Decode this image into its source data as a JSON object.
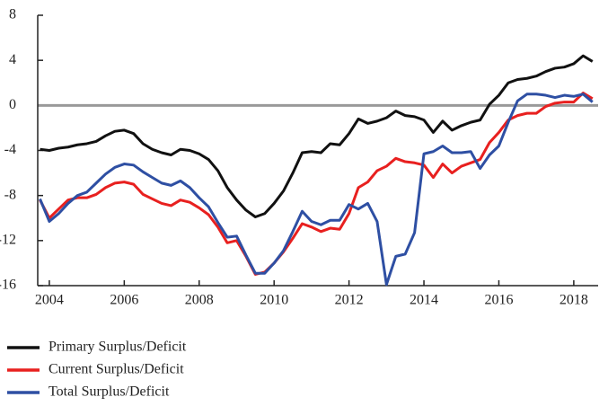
{
  "chart_data": {
    "type": "line",
    "x": [
      2003.75,
      2004,
      2004.25,
      2004.5,
      2004.75,
      2005,
      2005.25,
      2005.5,
      2005.75,
      2006,
      2006.25,
      2006.5,
      2006.75,
      2007,
      2007.25,
      2007.5,
      2007.75,
      2008,
      2008.25,
      2008.5,
      2008.75,
      2009,
      2009.25,
      2009.5,
      2009.75,
      2010,
      2010.25,
      2010.5,
      2010.75,
      2011,
      2011.25,
      2011.5,
      2011.75,
      2012,
      2012.25,
      2012.5,
      2012.75,
      2013,
      2013.25,
      2013.5,
      2013.75,
      2014,
      2014.25,
      2014.5,
      2014.75,
      2015,
      2015.25,
      2015.5,
      2015.75,
      2016,
      2016.25,
      2016.5,
      2016.75,
      2017,
      2017.25,
      2017.5,
      2017.75,
      2018,
      2018.25,
      2018.5
    ],
    "series": [
      {
        "name": "Primary Surplus/Deficit",
        "color": "#111111",
        "values": [
          -3.9,
          -4.0,
          -3.8,
          -3.7,
          -3.5,
          -3.4,
          -3.2,
          -2.7,
          -2.3,
          -2.2,
          -2.5,
          -3.4,
          -3.9,
          -4.2,
          -4.4,
          -3.9,
          -4.0,
          -4.3,
          -4.8,
          -5.8,
          -7.3,
          -8.4,
          -9.3,
          -9.9,
          -9.6,
          -8.7,
          -7.6,
          -6.0,
          -4.2,
          -4.1,
          -4.2,
          -3.4,
          -3.5,
          -2.5,
          -1.2,
          -1.6,
          -1.4,
          -1.1,
          -0.5,
          -0.9,
          -1.0,
          -1.3,
          -2.4,
          -1.4,
          -2.2,
          -1.8,
          -1.5,
          -1.3,
          0.1,
          0.9,
          2.0,
          2.3,
          2.4,
          2.6,
          3.0,
          3.3,
          3.4,
          3.7,
          4.4,
          3.9
        ]
      },
      {
        "name": "Current Surplus/Deficit",
        "color": "#e8201f",
        "values": [
          -8.4,
          -10.0,
          -9.2,
          -8.4,
          -8.2,
          -8.2,
          -7.9,
          -7.3,
          -6.9,
          -6.8,
          -7.0,
          -7.9,
          -8.3,
          -8.7,
          -8.9,
          -8.4,
          -8.6,
          -9.1,
          -9.7,
          -10.8,
          -12.2,
          -12.0,
          -13.4,
          -15.0,
          -14.8,
          -14.0,
          -13.0,
          -11.8,
          -10.5,
          -10.8,
          -11.2,
          -10.9,
          -11.0,
          -9.6,
          -7.3,
          -6.8,
          -5.8,
          -5.4,
          -4.7,
          -5.0,
          -5.1,
          -5.3,
          -6.4,
          -5.2,
          -6.0,
          -5.4,
          -5.1,
          -4.8,
          -3.3,
          -2.4,
          -1.3,
          -0.9,
          -0.7,
          -0.7,
          -0.1,
          0.2,
          0.3,
          0.3,
          1.1,
          0.6
        ]
      },
      {
        "name": "Total Surplus/Deficit",
        "color": "#2e4fa3",
        "values": [
          -8.3,
          -10.3,
          -9.6,
          -8.7,
          -8.0,
          -7.7,
          -6.9,
          -6.1,
          -5.5,
          -5.2,
          -5.3,
          -5.9,
          -6.4,
          -6.9,
          -7.1,
          -6.7,
          -7.3,
          -8.2,
          -9.0,
          -10.4,
          -11.7,
          -11.6,
          -13.3,
          -14.9,
          -14.9,
          -14.0,
          -12.9,
          -11.2,
          -9.4,
          -10.3,
          -10.6,
          -10.2,
          -10.2,
          -8.8,
          -9.2,
          -8.7,
          -10.3,
          -15.9,
          -13.4,
          -13.2,
          -11.3,
          -4.3,
          -4.1,
          -3.6,
          -4.2,
          -4.2,
          -4.1,
          -5.6,
          -4.4,
          -3.6,
          -1.5,
          0.4,
          1.0,
          1.0,
          0.9,
          0.7,
          0.9,
          0.8,
          1.0,
          0.3
        ]
      }
    ],
    "xlim": [
      2003.69,
      2018.65
    ],
    "xticks": [
      2004,
      2006,
      2008,
      2010,
      2012,
      2014,
      2016,
      2018
    ],
    "ylim": [
      -16,
      8
    ],
    "yticks": [
      8,
      4,
      0,
      -4,
      -8,
      -12,
      -16
    ],
    "reference_line": 0,
    "legend": "bottom"
  }
}
